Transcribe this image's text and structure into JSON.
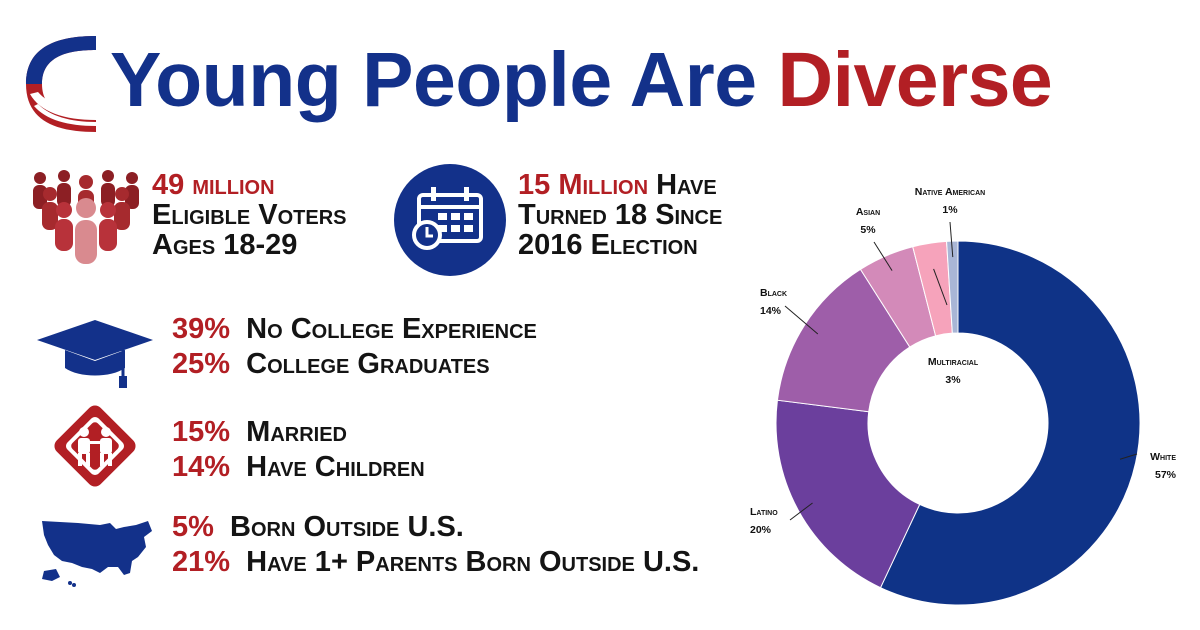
{
  "title": {
    "part1": "Young People Are",
    "part2": "Diverse"
  },
  "colors": {
    "navy": "#13318a",
    "red": "#b21f24",
    "white_seg": "#0f3387",
    "latino": "#6b3f9d",
    "black": "#9e5ea9",
    "asian": "#d38ab9",
    "multiracial": "#f6a3bb",
    "native": "#a9b6d6"
  },
  "stats": {
    "voters": {
      "highlight": "49 million",
      "line2": "Eligible Voters",
      "line3": "Ages 18-29",
      "icon": "crowd-icon"
    },
    "turned18": {
      "highlight": "15 Million",
      "line1_rest": "Have",
      "line2": "Turned 18 Since",
      "line3": "2016 Election",
      "icon": "calendar-clock-icon"
    }
  },
  "facts": {
    "education": [
      {
        "pct": "39%",
        "text": "No College Experience"
      },
      {
        "pct": "25%",
        "text": "College Graduates"
      }
    ],
    "family": [
      {
        "pct": "15%",
        "text": "Married"
      },
      {
        "pct": "14%",
        "text": "Have Children"
      }
    ],
    "origin": [
      {
        "pct": "5%",
        "text": "Born Outside U.S."
      },
      {
        "pct": "21%",
        "text": "Have 1+ Parents Born Outside U.S."
      }
    ],
    "icons": [
      "graduation-cap-icon",
      "children-crossing-icon",
      "us-map-icon"
    ]
  },
  "chart_data": {
    "type": "pie",
    "style": "donut",
    "categories": [
      "White",
      "Latino",
      "Black",
      "Asian",
      "Multiracial",
      "Native American"
    ],
    "values": [
      57,
      20,
      14,
      5,
      3,
      1
    ],
    "value_labels": [
      "57%",
      "20%",
      "14%",
      "5%",
      "3%",
      "1%"
    ],
    "colors": [
      "#0f3387",
      "#6b3f9d",
      "#9e5ea9",
      "#d38ab9",
      "#f6a3bb",
      "#a9b6d6"
    ],
    "direction": "clockwise from top",
    "legend": "none (direct labels with leader lines)"
  }
}
